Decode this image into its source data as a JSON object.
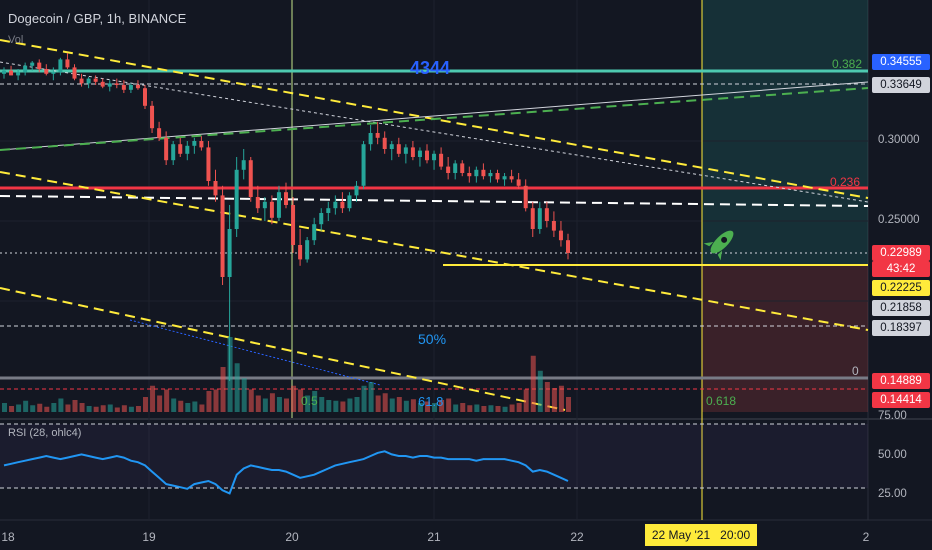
{
  "header": {
    "title": "Dogecoin / GBP, 1h, BINANCE",
    "vol_label": "Vol",
    "rsi_label": "RSI (28, ohlc4)"
  },
  "colors": {
    "background": "#131722",
    "up": "#26a69a",
    "down": "#ef5350",
    "fib": "#4caf50",
    "accent_red": "#f23645",
    "accent_yellow": "#ffeb3b",
    "accent_blue": "#2962ff",
    "rsi": "#2196f3"
  },
  "annotations": {
    "big_number": "4344",
    "fifty": "50%",
    "fib_05": "0.5",
    "fib_618a": "61.8",
    "fib_618b": "0.618",
    "fib_0382": "0.382",
    "fib_0236": "0.236",
    "fib_0": "0",
    "rocket": "rocket-icon"
  },
  "price_axis": {
    "ticks": [
      "0.30000",
      "0.25000"
    ],
    "tags": [
      {
        "label": "0.34555",
        "bg": "#2962ff",
        "fg": "#ffffff"
      },
      {
        "label": "0.33649",
        "bg": "#d1d4dc",
        "fg": "#131722"
      },
      {
        "label": "0.22989",
        "bg": "#f23645",
        "fg": "#ffffff"
      },
      {
        "label": "43:42",
        "bg": "#f23645",
        "fg": "#ffffff"
      },
      {
        "label": "0.22225",
        "bg": "#ffeb3b",
        "fg": "#131722"
      },
      {
        "label": "0.21858",
        "bg": "#d1d4dc",
        "fg": "#131722"
      },
      {
        "label": "0.18397",
        "bg": "#d1d4dc",
        "fg": "#131722"
      },
      {
        "label": "0.14889",
        "bg": "#f23645",
        "fg": "#ffffff"
      },
      {
        "label": "0.14414",
        "bg": "#f23645",
        "fg": "#ffffff"
      }
    ]
  },
  "rsi_axis": {
    "ticks": [
      "75.00",
      "50.00",
      "25.00"
    ]
  },
  "time_axis": {
    "ticks": [
      "18",
      "19",
      "20",
      "21",
      "22",
      "2"
    ],
    "cursor_label": "22 May '21   20:00"
  },
  "chart_data": [
    {
      "type": "candlestick",
      "title": "Dogecoin / GBP, 1h, BINANCE",
      "x_ticks": [
        "18",
        "19",
        "20",
        "21",
        "22"
      ],
      "y_ticks": [
        0.3,
        0.25
      ],
      "levels": {
        "fib_0382": 0.34555,
        "level_33649": 0.33649,
        "fib_0236": 0.27,
        "last_price": 0.22989,
        "yellow_line": 0.22225,
        "level_21858": 0.21858,
        "level_18397": 0.18397,
        "fib_0": 0.14889,
        "level_14414": 0.14414
      },
      "ohlc": [
        [
          0.342,
          0.346,
          0.339,
          0.344
        ],
        [
          0.344,
          0.347,
          0.341,
          0.341
        ],
        [
          0.341,
          0.345,
          0.338,
          0.343
        ],
        [
          0.343,
          0.349,
          0.341,
          0.347
        ],
        [
          0.347,
          0.35,
          0.344,
          0.349
        ],
        [
          0.349,
          0.351,
          0.343,
          0.345
        ],
        [
          0.345,
          0.348,
          0.341,
          0.342
        ],
        [
          0.342,
          0.346,
          0.338,
          0.343
        ],
        [
          0.343,
          0.352,
          0.341,
          0.351
        ],
        [
          0.351,
          0.355,
          0.345,
          0.346
        ],
        [
          0.346,
          0.348,
          0.338,
          0.339
        ],
        [
          0.339,
          0.342,
          0.334,
          0.336
        ],
        [
          0.336,
          0.34,
          0.333,
          0.339
        ],
        [
          0.339,
          0.341,
          0.335,
          0.337
        ],
        [
          0.337,
          0.339,
          0.333,
          0.334
        ],
        [
          0.334,
          0.338,
          0.331,
          0.336
        ],
        [
          0.336,
          0.339,
          0.333,
          0.335
        ],
        [
          0.335,
          0.338,
          0.33,
          0.332
        ],
        [
          0.332,
          0.336,
          0.33,
          0.335
        ],
        [
          0.335,
          0.338,
          0.332,
          0.333
        ],
        [
          0.333,
          0.335,
          0.32,
          0.322
        ],
        [
          0.322,
          0.325,
          0.305,
          0.308
        ],
        [
          0.308,
          0.312,
          0.3,
          0.302
        ],
        [
          0.302,
          0.306,
          0.285,
          0.288
        ],
        [
          0.288,
          0.3,
          0.285,
          0.298
        ],
        [
          0.298,
          0.302,
          0.29,
          0.292
        ],
        [
          0.292,
          0.3,
          0.288,
          0.297
        ],
        [
          0.297,
          0.302,
          0.292,
          0.3
        ],
        [
          0.3,
          0.303,
          0.294,
          0.296
        ],
        [
          0.296,
          0.3,
          0.272,
          0.275
        ],
        [
          0.275,
          0.282,
          0.262,
          0.266
        ],
        [
          0.266,
          0.272,
          0.21,
          0.215
        ],
        [
          0.215,
          0.26,
          0.15,
          0.245
        ],
        [
          0.245,
          0.29,
          0.24,
          0.282
        ],
        [
          0.282,
          0.295,
          0.276,
          0.288
        ],
        [
          0.288,
          0.29,
          0.262,
          0.265
        ],
        [
          0.265,
          0.272,
          0.255,
          0.258
        ],
        [
          0.258,
          0.265,
          0.25,
          0.262
        ],
        [
          0.262,
          0.266,
          0.248,
          0.252
        ],
        [
          0.252,
          0.272,
          0.25,
          0.268
        ],
        [
          0.268,
          0.274,
          0.258,
          0.26
        ],
        [
          0.26,
          0.265,
          0.23,
          0.235
        ],
        [
          0.235,
          0.245,
          0.222,
          0.226
        ],
        [
          0.226,
          0.24,
          0.224,
          0.238
        ],
        [
          0.238,
          0.252,
          0.235,
          0.248
        ],
        [
          0.248,
          0.258,
          0.244,
          0.255
        ],
        [
          0.255,
          0.262,
          0.25,
          0.258
        ],
        [
          0.258,
          0.266,
          0.254,
          0.262
        ],
        [
          0.262,
          0.268,
          0.255,
          0.258
        ],
        [
          0.258,
          0.268,
          0.256,
          0.266
        ],
        [
          0.266,
          0.275,
          0.262,
          0.272
        ],
        [
          0.272,
          0.3,
          0.27,
          0.298
        ],
        [
          0.298,
          0.31,
          0.294,
          0.305
        ],
        [
          0.305,
          0.312,
          0.298,
          0.302
        ],
        [
          0.302,
          0.306,
          0.292,
          0.295
        ],
        [
          0.295,
          0.3,
          0.288,
          0.298
        ],
        [
          0.298,
          0.302,
          0.29,
          0.292
        ],
        [
          0.292,
          0.298,
          0.286,
          0.296
        ],
        [
          0.296,
          0.3,
          0.288,
          0.29
        ],
        [
          0.29,
          0.296,
          0.284,
          0.294
        ],
        [
          0.294,
          0.298,
          0.286,
          0.288
        ],
        [
          0.288,
          0.294,
          0.282,
          0.292
        ],
        [
          0.292,
          0.296,
          0.282,
          0.284
        ],
        [
          0.284,
          0.29,
          0.276,
          0.28
        ],
        [
          0.28,
          0.288,
          0.276,
          0.286
        ],
        [
          0.286,
          0.288,
          0.278,
          0.28
        ],
        [
          0.28,
          0.284,
          0.274,
          0.278
        ],
        [
          0.278,
          0.284,
          0.274,
          0.282
        ],
        [
          0.282,
          0.286,
          0.276,
          0.278
        ],
        [
          0.278,
          0.282,
          0.274,
          0.28
        ],
        [
          0.28,
          0.282,
          0.274,
          0.276
        ],
        [
          0.276,
          0.28,
          0.272,
          0.278
        ],
        [
          0.278,
          0.282,
          0.274,
          0.276
        ],
        [
          0.276,
          0.28,
          0.27,
          0.272
        ],
        [
          0.272,
          0.276,
          0.256,
          0.258
        ],
        [
          0.258,
          0.262,
          0.24,
          0.245
        ],
        [
          0.245,
          0.262,
          0.242,
          0.258
        ],
        [
          0.258,
          0.262,
          0.246,
          0.25
        ],
        [
          0.25,
          0.256,
          0.24,
          0.244
        ],
        [
          0.244,
          0.25,
          0.234,
          0.238
        ],
        [
          0.238,
          0.242,
          0.226,
          0.23
        ]
      ],
      "volume": [
        0.12,
        0.08,
        0.1,
        0.15,
        0.09,
        0.11,
        0.07,
        0.12,
        0.18,
        0.1,
        0.16,
        0.12,
        0.08,
        0.07,
        0.09,
        0.1,
        0.06,
        0.09,
        0.07,
        0.08,
        0.2,
        0.35,
        0.22,
        0.3,
        0.18,
        0.15,
        0.12,
        0.14,
        0.1,
        0.28,
        0.3,
        0.6,
        1.0,
        0.65,
        0.45,
        0.3,
        0.22,
        0.18,
        0.25,
        0.2,
        0.18,
        0.35,
        0.3,
        0.22,
        0.28,
        0.2,
        0.16,
        0.15,
        0.14,
        0.18,
        0.2,
        0.35,
        0.4,
        0.22,
        0.25,
        0.18,
        0.2,
        0.15,
        0.17,
        0.12,
        0.14,
        0.12,
        0.16,
        0.18,
        0.1,
        0.12,
        0.09,
        0.1,
        0.08,
        0.09,
        0.08,
        0.07,
        0.1,
        0.12,
        0.3,
        0.75,
        0.55,
        0.4,
        0.32,
        0.35,
        0.2
      ],
      "rsi": [
        44,
        45,
        46,
        47,
        48,
        49,
        50,
        49,
        48,
        49,
        50,
        51,
        50,
        49,
        48,
        49,
        50,
        49,
        47,
        46,
        44,
        40,
        36,
        32,
        31,
        30,
        29,
        32,
        33,
        34,
        32,
        28,
        26,
        38,
        42,
        44,
        43,
        42,
        41,
        41,
        40,
        38,
        36,
        37,
        38,
        40,
        42,
        44,
        45,
        46,
        47,
        48,
        50,
        52,
        53,
        51,
        50,
        50,
        49,
        50,
        50,
        49,
        49,
        48,
        48,
        48,
        48,
        47,
        48,
        48,
        48,
        48,
        47,
        46,
        44,
        40,
        41,
        40,
        38,
        36,
        34
      ],
      "rsi_ylim": [
        0,
        100
      ]
    }
  ]
}
